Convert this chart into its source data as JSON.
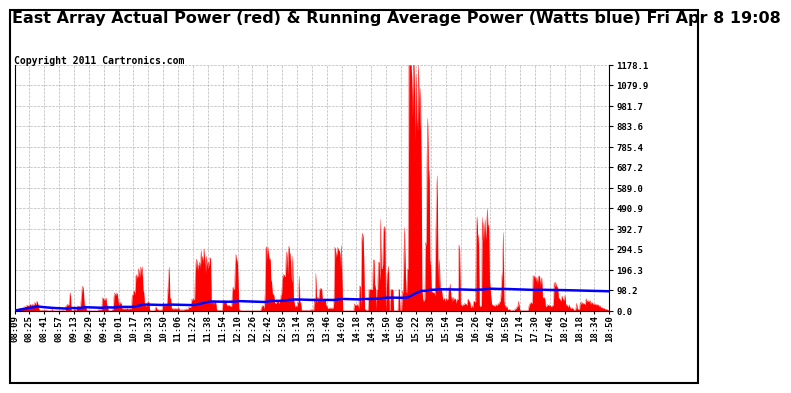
{
  "title": "East Array Actual Power (red) & Running Average Power (Watts blue) Fri Apr 8 19:08",
  "copyright": "Copyright 2011 Cartronics.com",
  "ylabel_right_values": [
    0.0,
    98.2,
    196.3,
    294.5,
    392.7,
    490.9,
    589.0,
    687.2,
    785.4,
    883.6,
    981.7,
    1079.9,
    1178.1
  ],
  "ymax": 1178.1,
  "ymin": 0.0,
  "background_color": "#ffffff",
  "grid_color": "#b0b0b0",
  "actual_color": "red",
  "average_color": "blue",
  "title_fontsize": 11.5,
  "copyright_fontsize": 7,
  "tick_fontsize": 6.5,
  "x_tick_labels": [
    "08:09",
    "08:25",
    "08:41",
    "08:57",
    "09:13",
    "09:29",
    "09:45",
    "10:01",
    "10:17",
    "10:33",
    "10:50",
    "11:06",
    "11:22",
    "11:38",
    "11:54",
    "12:10",
    "12:26",
    "12:42",
    "12:58",
    "13:14",
    "13:30",
    "13:46",
    "14:02",
    "14:18",
    "14:34",
    "14:50",
    "15:06",
    "15:22",
    "15:38",
    "15:54",
    "16:10",
    "16:26",
    "16:42",
    "16:58",
    "17:14",
    "17:30",
    "17:46",
    "18:02",
    "18:18",
    "18:34",
    "18:50"
  ],
  "num_points": 820
}
